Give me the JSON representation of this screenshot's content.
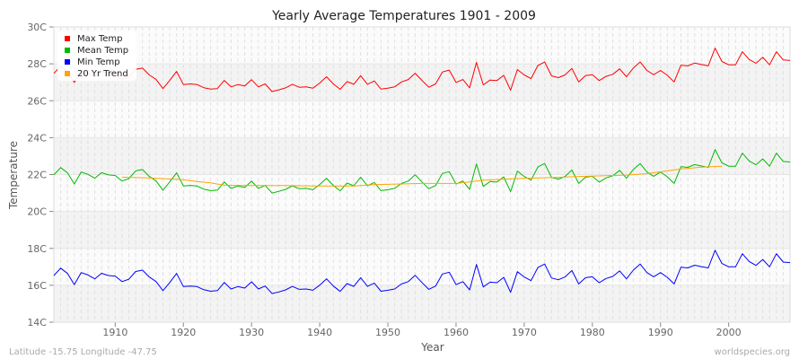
{
  "chart_data": {
    "type": "line",
    "title": "Yearly Average Temperatures 1901 - 2009",
    "xlabel": "Year",
    "ylabel": "Temperature",
    "xlim": [
      1901,
      2009
    ],
    "ylim": [
      14,
      30
    ],
    "x_ticks": [
      1910,
      1920,
      1930,
      1940,
      1950,
      1960,
      1970,
      1980,
      1990,
      2000
    ],
    "y_ticks": [
      "14C",
      "16C",
      "18C",
      "20C",
      "22C",
      "24C",
      "26C",
      "28C",
      "30C"
    ],
    "y_tick_values": [
      14,
      16,
      18,
      20,
      22,
      24,
      26,
      28,
      30
    ],
    "grid": true,
    "legend_placement": "top-left",
    "x_start": 1901,
    "series": [
      {
        "name": "Max Temp",
        "color": "#ff0000",
        "values": [
          27.48,
          27.88,
          27.59,
          26.99,
          27.64,
          27.51,
          27.3,
          27.6,
          27.48,
          27.45,
          27.15,
          27.28,
          27.7,
          27.77,
          27.4,
          27.15,
          26.66,
          27.1,
          27.59,
          26.88,
          26.91,
          26.88,
          26.71,
          26.63,
          26.66,
          27.1,
          26.75,
          26.88,
          26.8,
          27.14,
          26.75,
          26.91,
          26.5,
          26.59,
          26.7,
          26.89,
          26.73,
          26.75,
          26.68,
          26.96,
          27.3,
          26.91,
          26.62,
          27.04,
          26.89,
          27.36,
          26.89,
          27.07,
          26.63,
          26.68,
          26.75,
          27.02,
          27.15,
          27.49,
          27.1,
          26.73,
          26.91,
          27.56,
          27.66,
          26.99,
          27.15,
          26.7,
          28.08,
          26.86,
          27.12,
          27.09,
          27.38,
          26.57,
          27.69,
          27.4,
          27.2,
          27.91,
          28.1,
          27.35,
          27.25,
          27.4,
          27.75,
          27.02,
          27.36,
          27.41,
          27.09,
          27.32,
          27.43,
          27.73,
          27.3,
          27.77,
          28.1,
          27.64,
          27.41,
          27.64,
          27.38,
          27.02,
          27.93,
          27.89,
          28.04,
          27.96,
          27.89,
          28.85,
          28.13,
          27.95,
          27.95,
          28.66,
          28.24,
          28.03,
          28.35,
          27.95,
          28.66,
          28.21,
          28.18
        ]
      },
      {
        "name": "Mean Temp",
        "color": "#00bb00",
        "values": [
          21.98,
          22.38,
          22.09,
          21.49,
          22.14,
          22.01,
          21.8,
          22.1,
          21.98,
          21.95,
          21.65,
          21.78,
          22.2,
          22.27,
          21.9,
          21.65,
          21.16,
          21.6,
          22.09,
          21.38,
          21.41,
          21.38,
          21.21,
          21.13,
          21.16,
          21.6,
          21.25,
          21.38,
          21.3,
          21.64,
          21.25,
          21.41,
          21.0,
          21.09,
          21.2,
          21.39,
          21.23,
          21.25,
          21.18,
          21.46,
          21.8,
          21.41,
          21.12,
          21.54,
          21.39,
          21.86,
          21.39,
          21.57,
          21.13,
          21.18,
          21.25,
          21.52,
          21.65,
          21.99,
          21.6,
          21.23,
          21.41,
          22.06,
          22.16,
          21.49,
          21.65,
          21.2,
          22.58,
          21.36,
          21.62,
          21.59,
          21.88,
          21.07,
          22.19,
          21.9,
          21.7,
          22.41,
          22.6,
          21.85,
          21.75,
          21.9,
          22.25,
          21.52,
          21.86,
          21.91,
          21.59,
          21.82,
          21.93,
          22.23,
          21.8,
          22.27,
          22.6,
          22.14,
          21.91,
          22.14,
          21.88,
          21.52,
          22.43,
          22.39,
          22.54,
          22.46,
          22.39,
          23.35,
          22.63,
          22.45,
          22.45,
          23.16,
          22.74,
          22.53,
          22.85,
          22.45,
          23.16,
          22.71,
          22.68
        ]
      },
      {
        "name": "Min Temp",
        "color": "#0000ff",
        "values": [
          16.53,
          16.93,
          16.64,
          16.04,
          16.69,
          16.56,
          16.35,
          16.65,
          16.53,
          16.5,
          16.2,
          16.33,
          16.75,
          16.82,
          16.45,
          16.2,
          15.71,
          16.15,
          16.64,
          15.93,
          15.96,
          15.93,
          15.76,
          15.68,
          15.71,
          16.15,
          15.8,
          15.93,
          15.85,
          16.19,
          15.8,
          15.96,
          15.55,
          15.64,
          15.75,
          15.94,
          15.78,
          15.8,
          15.73,
          16.01,
          16.35,
          15.96,
          15.67,
          16.09,
          15.94,
          16.41,
          15.94,
          16.12,
          15.68,
          15.73,
          15.8,
          16.07,
          16.2,
          16.54,
          16.15,
          15.78,
          15.96,
          16.61,
          16.71,
          16.04,
          16.2,
          15.75,
          17.13,
          15.91,
          16.17,
          16.14,
          16.43,
          15.62,
          16.74,
          16.45,
          16.25,
          16.96,
          17.15,
          16.4,
          16.3,
          16.45,
          16.8,
          16.07,
          16.41,
          16.46,
          16.14,
          16.37,
          16.48,
          16.78,
          16.35,
          16.82,
          17.15,
          16.69,
          16.46,
          16.69,
          16.43,
          16.07,
          16.98,
          16.94,
          17.09,
          17.01,
          16.94,
          17.9,
          17.18,
          17.0,
          17.0,
          17.71,
          17.29,
          17.08,
          17.4,
          17.0,
          17.71,
          17.26,
          17.23
        ]
      },
      {
        "name": "20 Yr Trend",
        "color": "#ffa500",
        "x": [
          1911,
          1915,
          1917,
          1920,
          1922,
          1924,
          1926,
          1930,
          1935,
          1940,
          1945,
          1948,
          1955,
          1960,
          1962,
          1964,
          1970,
          1975,
          1978,
          1985,
          1988,
          1991,
          1993,
          1996,
          1999
        ],
        "values": [
          21.86,
          21.82,
          21.78,
          21.72,
          21.62,
          21.55,
          21.42,
          21.4,
          21.4,
          21.38,
          21.38,
          21.45,
          21.52,
          21.52,
          21.6,
          21.7,
          21.8,
          21.85,
          21.9,
          21.97,
          22.05,
          22.2,
          22.3,
          22.4,
          22.45
        ]
      }
    ]
  },
  "footer": {
    "location": "Latitude -15.75 Longitude -47.75",
    "source": "worldspecies.org"
  }
}
